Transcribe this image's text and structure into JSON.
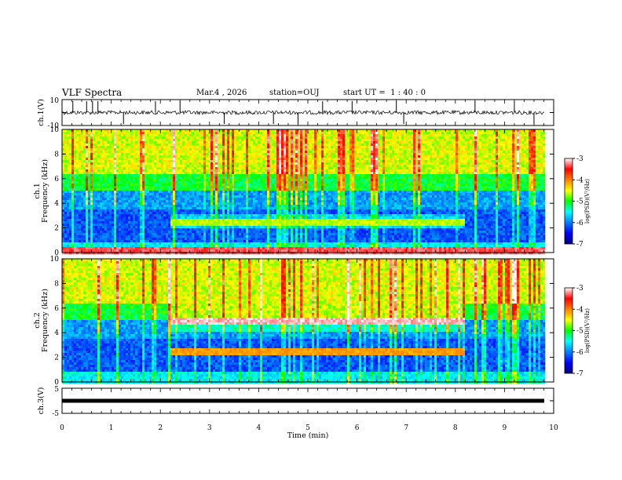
{
  "header": {
    "title": "VLF Spectra",
    "date": "Mar.4 , 2026",
    "station": "station=OUJ",
    "start": "start UT =  1 : 40 : 0"
  },
  "chart_data": [
    {
      "type": "line",
      "name": "waveform",
      "ylabel": "ch.1(V)",
      "yticks": [
        "10",
        "-10"
      ],
      "ylim": [
        -10,
        10
      ],
      "baseline": 0,
      "spikes_min": [
        0.22,
        0.5,
        0.62,
        0.73,
        1.25,
        1.9,
        2.4,
        3.3,
        4.3,
        4.8,
        5.3,
        5.9,
        6.8,
        6.95,
        8.4,
        9.2,
        9.6
      ]
    },
    {
      "type": "heatmap",
      "name": "spectrogram-ch1",
      "ylabel": "ch.1\nFrequency (kHz)",
      "yticks": [
        "0",
        "2",
        "4",
        "6",
        "8",
        "10"
      ],
      "ylim": [
        0,
        10
      ],
      "xlim": [
        0,
        10
      ],
      "colorbar": {
        "label": "log(PSD)(V²/Hz)",
        "ticks": [
          "-3",
          "-4",
          "-5",
          "-6",
          "-7"
        ],
        "range": [
          -7,
          -3
        ]
      },
      "bands": [
        {
          "f": 0.3,
          "t0": 0.0,
          "t1": 9.8,
          "v": -3.2
        },
        {
          "f": 2.5,
          "t0": 2.2,
          "t1": 8.2,
          "v": -5.0
        }
      ]
    },
    {
      "type": "heatmap",
      "name": "spectrogram-ch2",
      "ylabel": "ch.2\nFrequency (kHz)",
      "yticks": [
        "0",
        "2",
        "4",
        "6",
        "8",
        "10"
      ],
      "ylim": [
        0,
        10
      ],
      "xlim": [
        0,
        10
      ],
      "colorbar": {
        "label": "log(PSD)(V²/Hz)",
        "ticks": [
          "-3",
          "-4",
          "-5",
          "-6",
          "-7"
        ],
        "range": [
          -7,
          -3
        ]
      },
      "bands": [
        {
          "f": 5.0,
          "t0": 2.2,
          "t1": 8.2,
          "v": -3.5
        },
        {
          "f": 2.5,
          "t0": 2.2,
          "t1": 8.2,
          "v": -4.0
        }
      ]
    },
    {
      "type": "line",
      "name": "waveform-ch3",
      "ylabel": "ch.3(V)",
      "yticks": [
        "5",
        "-5"
      ],
      "ylim": [
        -5,
        5
      ],
      "baseline": 0,
      "xlabel": "Time (min)",
      "xticks": [
        "0",
        "1",
        "2",
        "3",
        "4",
        "5",
        "6",
        "7",
        "8",
        "9",
        "10"
      ],
      "xlim": [
        0,
        10
      ]
    }
  ],
  "colors": {
    "axis": "#000000",
    "trace": "#000000",
    "background": "#ffffff"
  }
}
